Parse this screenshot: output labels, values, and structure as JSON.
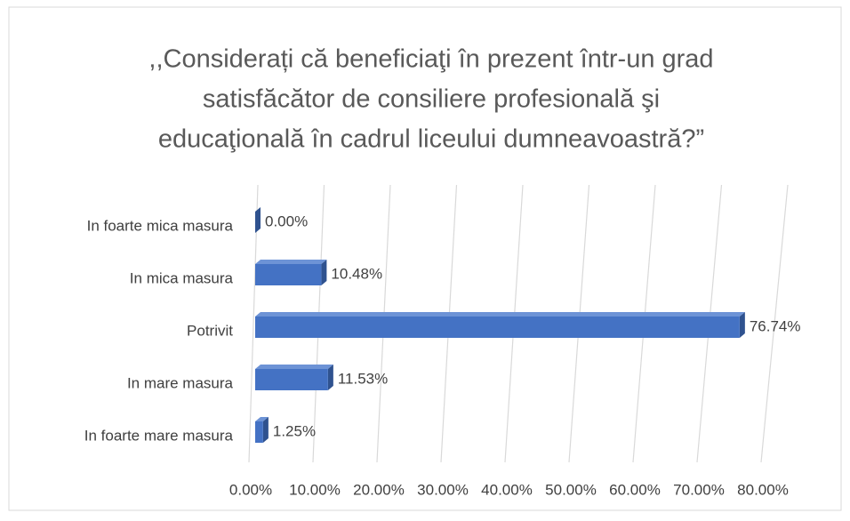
{
  "chart_data": {
    "type": "bar3d_horizontal",
    "title": [
      ",,Considerați că beneficiaţi în prezent într-un grad",
      "satisfăcător  de consiliere profesională şi",
      "educaţională în cadrul liceului dumneavoastră?”"
    ],
    "categories": [
      "In foarte mica masura",
      "In mica masura",
      "Potrivit",
      "In mare masura",
      "In foarte mare masura"
    ],
    "values": [
      0.0,
      10.48,
      76.74,
      11.53,
      1.25
    ],
    "value_labels": [
      "0.00%",
      "10.48%",
      "76.74%",
      "11.53%",
      "1.25%"
    ],
    "color": "#4472c4",
    "xlim": [
      0,
      80
    ],
    "xticks": [
      {
        "value": 0,
        "label": "0.00%"
      },
      {
        "value": 10,
        "label": "10.00%"
      },
      {
        "value": 20,
        "label": "20.00%"
      },
      {
        "value": 30,
        "label": "30.00%"
      },
      {
        "value": 40,
        "label": "40.00%"
      },
      {
        "value": 50,
        "label": "50.00%"
      },
      {
        "value": 60,
        "label": "60.00%"
      },
      {
        "value": 70,
        "label": "70.00%"
      },
      {
        "value": 80,
        "label": "80.00%"
      }
    ],
    "grid": true
  }
}
